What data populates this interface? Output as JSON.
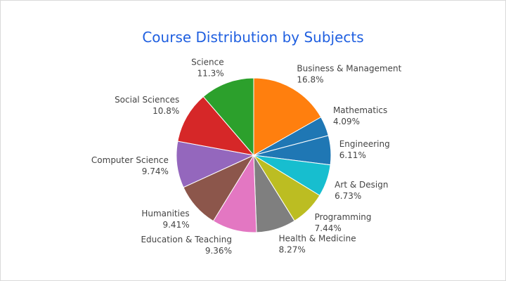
{
  "chart_data": {
    "type": "pie",
    "title": "Course Distribution by Subjects",
    "slices": [
      {
        "label": "Business & Management",
        "value": 16.8,
        "pct_label": "16.8%",
        "color": "#ff7f0e"
      },
      {
        "label": "Mathematics",
        "value": 4.09,
        "pct_label": "4.09%",
        "color": "#1f77b4"
      },
      {
        "label": "Engineering",
        "value": 6.11,
        "pct_label": "6.11%",
        "color": "#1f77b4"
      },
      {
        "label": "Art & Design",
        "value": 6.73,
        "pct_label": "6.73%",
        "color": "#17becf"
      },
      {
        "label": "Programming",
        "value": 7.44,
        "pct_label": "7.44%",
        "color": "#bcbd22"
      },
      {
        "label": "Health & Medicine",
        "value": 8.27,
        "pct_label": "8.27%",
        "color": "#7f7f7f"
      },
      {
        "label": "Education & Teaching",
        "value": 9.36,
        "pct_label": "9.36%",
        "color": "#e377c2"
      },
      {
        "label": "Humanities",
        "value": 9.41,
        "pct_label": "9.41%",
        "color": "#8c564b"
      },
      {
        "label": "Computer Science",
        "value": 9.74,
        "pct_label": "9.74%",
        "color": "#9467bd"
      },
      {
        "label": "Social Sciences",
        "value": 10.8,
        "pct_label": "10.8%",
        "color": "#d62728"
      },
      {
        "label": "Science",
        "value": 11.3,
        "pct_label": "11.3%",
        "color": "#2ca02c"
      }
    ],
    "legend": false
  }
}
